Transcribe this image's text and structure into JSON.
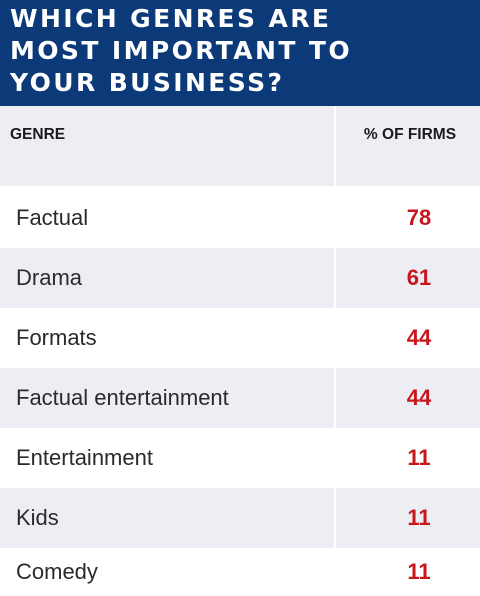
{
  "title_lines": [
    "WHICH GENRES ARE",
    "MOST IMPORTANT TO",
    "YOUR BUSINESS?"
  ],
  "chart_data": {
    "type": "table",
    "title": "WHICH GENRES ARE MOST IMPORTANT TO YOUR BUSINESS?",
    "columns": [
      "GENRE",
      "% OF FIRMS"
    ],
    "rows": [
      {
        "genre": "Factual",
        "value": "78"
      },
      {
        "genre": "Drama",
        "value": "61"
      },
      {
        "genre": "Formats",
        "value": "44"
      },
      {
        "genre": "Factual entertainment",
        "value": "44"
      },
      {
        "genre": "Entertainment",
        "value": "11"
      },
      {
        "genre": "Kids",
        "value": "11"
      },
      {
        "genre": "Comedy",
        "value": "11"
      }
    ]
  },
  "colors": {
    "title_background": "#0c3a78",
    "title_text": "#ffffff",
    "row_shade": "#eceef3",
    "value_text": "#c8161d"
  }
}
